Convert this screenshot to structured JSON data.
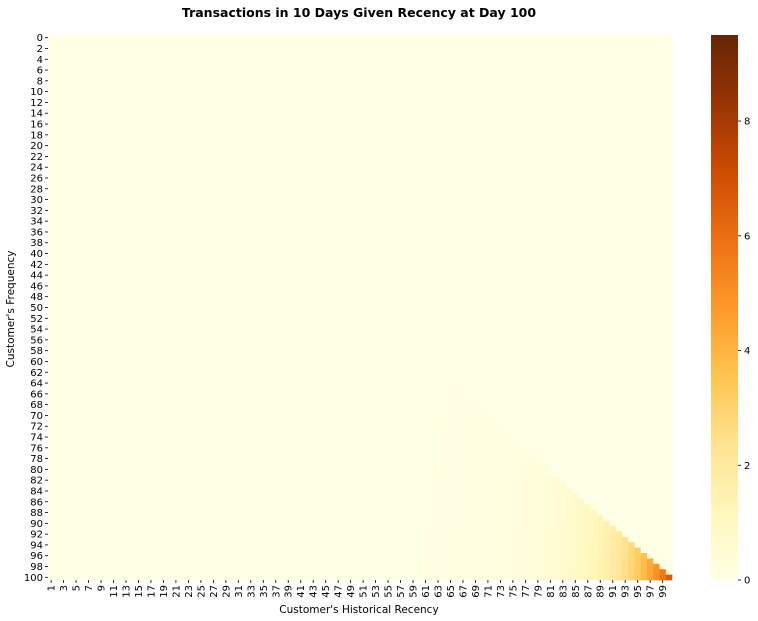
{
  "chart_data": {
    "type": "heatmap",
    "title": "Transactions in 10 Days Given Recency at Day 100",
    "xlabel": "Customer's Historical Recency",
    "ylabel": "Customer's Frequency",
    "x_range": [
      1,
      100
    ],
    "y_range": [
      0,
      100
    ],
    "x_tick_labels": [
      "1",
      "3",
      "5",
      "7",
      "9",
      "11",
      "13",
      "15",
      "17",
      "19",
      "21",
      "23",
      "25",
      "27",
      "29",
      "31",
      "33",
      "35",
      "37",
      "39",
      "41",
      "43",
      "45",
      "47",
      "49",
      "51",
      "53",
      "55",
      "57",
      "59",
      "61",
      "63",
      "65",
      "67",
      "69",
      "71",
      "73",
      "75",
      "77",
      "79",
      "81",
      "83",
      "85",
      "87",
      "89",
      "91",
      "93",
      "95",
      "97",
      "99"
    ],
    "y_tick_labels": [
      "0",
      "2",
      "4",
      "6",
      "8",
      "10",
      "12",
      "14",
      "16",
      "18",
      "20",
      "22",
      "24",
      "26",
      "28",
      "30",
      "32",
      "34",
      "36",
      "38",
      "40",
      "42",
      "44",
      "46",
      "48",
      "50",
      "52",
      "54",
      "56",
      "58",
      "60",
      "62",
      "64",
      "66",
      "68",
      "70",
      "72",
      "74",
      "76",
      "78",
      "80",
      "82",
      "84",
      "86",
      "88",
      "90",
      "92",
      "94",
      "96",
      "98",
      "100"
    ],
    "cells_rule": "value is 0 where recency > frequency + 0.5; otherwise value rises with frequency as recency approaches 100",
    "colorbar": {
      "range": [
        0,
        9.5
      ],
      "ticks": [
        "0",
        "2",
        "4",
        "6",
        "8"
      ],
      "colormap": "YlOrBr",
      "colors": [
        "#ffffe5",
        "#fff7bc",
        "#fee391",
        "#fec44f",
        "#fe9929",
        "#ec7014",
        "#cc4c02",
        "#993404",
        "#662506"
      ]
    }
  }
}
